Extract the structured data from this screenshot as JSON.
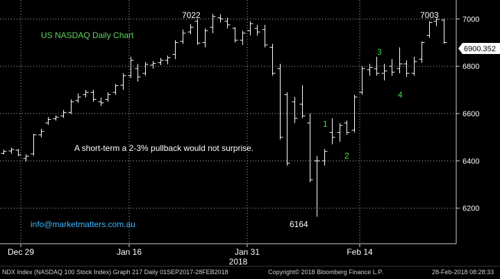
{
  "chart_data": {
    "type": "ohlc",
    "title": "US NASDAQ Daily Chart",
    "ylim": [
      6050,
      7080
    ],
    "yticks": [
      "7000",
      "6800",
      "6600",
      "6400",
      "6200"
    ],
    "xticks": [
      "Dec 29",
      "Jan 16",
      "Jan 31",
      "Feb 14"
    ],
    "year_label": "2018",
    "last_price_label": "6900.352",
    "annotations": {
      "high1": "7022",
      "high2": "7003",
      "low": "6164",
      "comment": "A short-term a 2-3% pullback would not surprise.",
      "website": "info@marketmatters.com.au",
      "wave1": "1",
      "wave2": "2",
      "wave3": "3",
      "wave4": "4"
    },
    "bars": [
      {
        "o": 6432,
        "h": 6448,
        "l": 6428,
        "c": 6440
      },
      {
        "o": 6442,
        "h": 6456,
        "l": 6430,
        "c": 6448
      },
      {
        "o": 6445,
        "h": 6450,
        "l": 6420,
        "c": 6425
      },
      {
        "o": 6410,
        "h": 6428,
        "l": 6398,
        "c": 6420
      },
      {
        "o": 6430,
        "h": 6515,
        "l": 6422,
        "c": 6510
      },
      {
        "o": 6510,
        "h": 6535,
        "l": 6500,
        "c": 6525
      },
      {
        "o": 6560,
        "h": 6585,
        "l": 6552,
        "c": 6575
      },
      {
        "o": 6578,
        "h": 6592,
        "l": 6570,
        "c": 6585
      },
      {
        "o": 6590,
        "h": 6615,
        "l": 6582,
        "c": 6605
      },
      {
        "o": 6605,
        "h": 6660,
        "l": 6598,
        "c": 6650
      },
      {
        "o": 6655,
        "h": 6685,
        "l": 6645,
        "c": 6670
      },
      {
        "o": 6680,
        "h": 6700,
        "l": 6668,
        "c": 6690
      },
      {
        "o": 6690,
        "h": 6700,
        "l": 6650,
        "c": 6660
      },
      {
        "o": 6650,
        "h": 6668,
        "l": 6632,
        "c": 6645
      },
      {
        "o": 6660,
        "h": 6690,
        "l": 6650,
        "c": 6680
      },
      {
        "o": 6690,
        "h": 6725,
        "l": 6680,
        "c": 6718
      },
      {
        "o": 6720,
        "h": 6770,
        "l": 6700,
        "c": 6760
      },
      {
        "o": 6760,
        "h": 6840,
        "l": 6750,
        "c": 6825
      },
      {
        "o": 6790,
        "h": 6810,
        "l": 6735,
        "c": 6755
      },
      {
        "o": 6770,
        "h": 6818,
        "l": 6760,
        "c": 6808
      },
      {
        "o": 6805,
        "h": 6822,
        "l": 6790,
        "c": 6812
      },
      {
        "o": 6815,
        "h": 6835,
        "l": 6805,
        "c": 6825
      },
      {
        "o": 6825,
        "h": 6845,
        "l": 6808,
        "c": 6836
      },
      {
        "o": 6850,
        "h": 6910,
        "l": 6830,
        "c": 6900
      },
      {
        "o": 6905,
        "h": 6955,
        "l": 6895,
        "c": 6940
      },
      {
        "o": 6945,
        "h": 6978,
        "l": 6935,
        "c": 6965
      },
      {
        "o": 6990,
        "h": 7000,
        "l": 6890,
        "c": 6898
      },
      {
        "o": 6900,
        "h": 6960,
        "l": 6880,
        "c": 6950
      },
      {
        "o": 6965,
        "h": 7022,
        "l": 6940,
        "c": 7010
      },
      {
        "o": 7005,
        "h": 7020,
        "l": 6985,
        "c": 7000
      },
      {
        "o": 6990,
        "h": 7005,
        "l": 6960,
        "c": 6975
      },
      {
        "o": 6960,
        "h": 6965,
        "l": 6900,
        "c": 6910
      },
      {
        "o": 6910,
        "h": 6950,
        "l": 6890,
        "c": 6940
      },
      {
        "o": 6950,
        "h": 6990,
        "l": 6930,
        "c": 6980
      },
      {
        "o": 6960,
        "h": 6975,
        "l": 6930,
        "c": 6945
      },
      {
        "o": 6955,
        "h": 6975,
        "l": 6880,
        "c": 6890
      },
      {
        "o": 6880,
        "h": 6895,
        "l": 6760,
        "c": 6770
      },
      {
        "o": 6790,
        "h": 6810,
        "l": 6490,
        "c": 6500
      },
      {
        "o": 6680,
        "h": 6690,
        "l": 6380,
        "c": 6390
      },
      {
        "o": 6650,
        "h": 6670,
        "l": 6560,
        "c": 6580
      },
      {
        "o": 6640,
        "h": 6720,
        "l": 6580,
        "c": 6590
      },
      {
        "o": 6560,
        "h": 6600,
        "l": 6310,
        "c": 6320
      },
      {
        "o": 6400,
        "h": 6420,
        "l": 6164,
        "c": 6400
      },
      {
        "o": 6400,
        "h": 6450,
        "l": 6380,
        "c": 6440
      },
      {
        "o": 6520,
        "h": 6580,
        "l": 6470,
        "c": 6500
      },
      {
        "o": 6520,
        "h": 6560,
        "l": 6480,
        "c": 6550
      },
      {
        "o": 6560,
        "h": 6570,
        "l": 6510,
        "c": 6520
      },
      {
        "o": 6530,
        "h": 6680,
        "l": 6520,
        "c": 6670
      },
      {
        "o": 6690,
        "h": 6800,
        "l": 6680,
        "c": 6790
      },
      {
        "o": 6785,
        "h": 6810,
        "l": 6760,
        "c": 6795
      },
      {
        "o": 6790,
        "h": 6840,
        "l": 6760,
        "c": 6770
      },
      {
        "o": 6770,
        "h": 6810,
        "l": 6740,
        "c": 6780
      },
      {
        "o": 6800,
        "h": 6830,
        "l": 6760,
        "c": 6775
      },
      {
        "o": 6790,
        "h": 6880,
        "l": 6770,
        "c": 6810
      },
      {
        "o": 6810,
        "h": 6825,
        "l": 6755,
        "c": 6770
      },
      {
        "o": 6770,
        "h": 6840,
        "l": 6760,
        "c": 6820
      },
      {
        "o": 6830,
        "h": 6905,
        "l": 6815,
        "c": 6900
      },
      {
        "o": 6930,
        "h": 6990,
        "l": 6920,
        "c": 6985
      },
      {
        "o": 6990,
        "h": 7003,
        "l": 6970,
        "c": 6998
      },
      {
        "o": 6995,
        "h": 7000,
        "l": 6895,
        "c": 6900
      }
    ]
  },
  "footer": {
    "left": "NDX Index (NASDAQ 100 Stock Index) Graph 217  Daily 01SEP2017-28FEB2018",
    "middle": "Copyright© 2018 Bloomberg Finance L.P.",
    "right": "28-Feb-2018 08:28:33"
  }
}
